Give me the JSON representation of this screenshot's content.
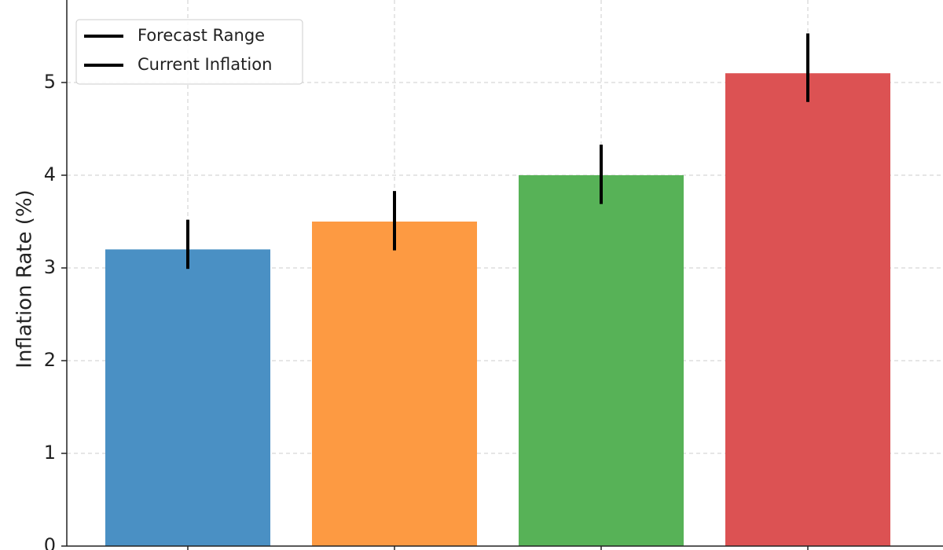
{
  "chart_data": {
    "type": "bar",
    "y_label": "Inflation Rate (%)",
    "categories": [
      null,
      null,
      null,
      null
    ],
    "series": [
      {
        "name": "Forecast Range",
        "color": "#000000",
        "low": [
          2.99,
          3.19,
          3.69,
          4.79
        ],
        "high": [
          3.52,
          3.83,
          4.33,
          5.53
        ]
      },
      {
        "name": "Current Inflation",
        "color": "#000000",
        "values": [
          3.2,
          3.5,
          4.0,
          5.1
        ],
        "colors": [
          "#4a90c4",
          "#fd9a42",
          "#57b257",
          "#dc5253"
        ]
      }
    ],
    "ylim": [
      0,
      5.89
    ],
    "yticks": [
      0,
      1,
      2,
      3,
      4,
      5
    ],
    "grid": true,
    "legend": "upper left"
  }
}
